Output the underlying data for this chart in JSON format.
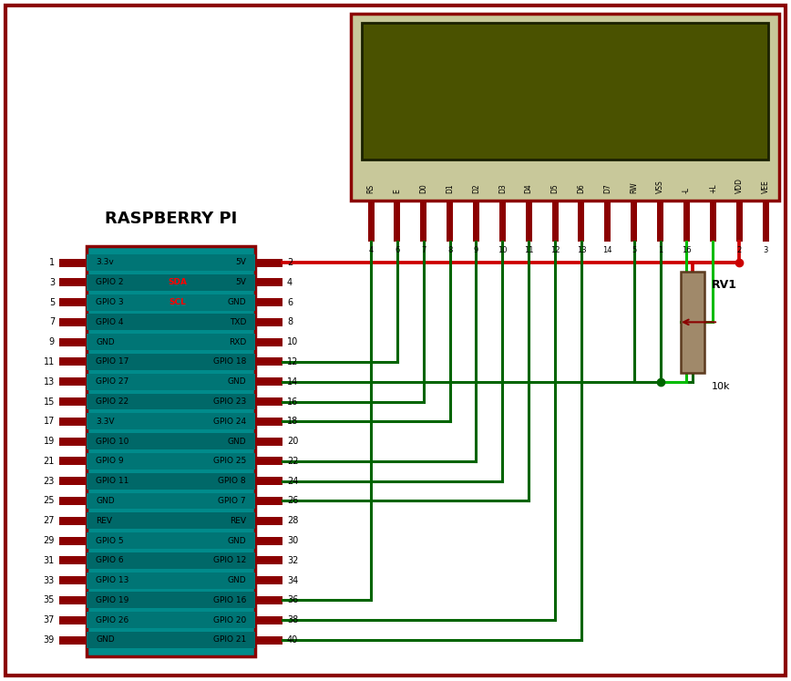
{
  "bg_color": "#ffffff",
  "border_color": "#8B0000",
  "rpi_left_labels": [
    "3.3v",
    "GPIO 2",
    "GPIO 3",
    "GPIO 4",
    "GND",
    "GPIO 17",
    "GPIO 27",
    "GPIO 22",
    "3.3V",
    "GPIO 10",
    "GPIO 9",
    "GPIO 11",
    "GND",
    "REV",
    "GPIO 5",
    "GPIO 6",
    "GPIO 13",
    "GPIO 19",
    "GPIO 26",
    "GND"
  ],
  "rpi_right_labels": [
    "5V",
    "5V",
    "GND",
    "TXD",
    "RXD",
    "GPIO 18",
    "GND",
    "GPIO 23",
    "GPIO 24",
    "GND",
    "GPIO 25",
    "GPIO 8",
    "GPIO 7",
    "REV",
    "GND",
    "GPIO 12",
    "GND",
    "GPIO 16",
    "GPIO 20",
    "GPIO 21"
  ],
  "rpi_left_nums": [
    "1",
    "3",
    "5",
    "7",
    "9",
    "11",
    "13",
    "15",
    "17",
    "19",
    "21",
    "23",
    "25",
    "27",
    "29",
    "31",
    "33",
    "35",
    "37",
    "39"
  ],
  "rpi_right_nums": [
    "2",
    "4",
    "6",
    "8",
    "10",
    "12",
    "14",
    "16",
    "18",
    "20",
    "22",
    "24",
    "26",
    "28",
    "30",
    "32",
    "34",
    "36",
    "38",
    "40"
  ],
  "lcd_pin_labels": [
    "RS",
    "E",
    "D0",
    "D1",
    "D2",
    "D3",
    "D4",
    "D5",
    "D6",
    "D7",
    "RW",
    "VSS",
    "-L",
    "+L",
    "VDD",
    "VEE"
  ],
  "lcd_pin_nums": [
    "4",
    "6",
    "7",
    "8",
    "9",
    "10",
    "11",
    "12",
    "13",
    "14",
    "5",
    "1",
    "16",
    "",
    "2",
    "3"
  ],
  "rpi_chip_color": "#008B8B",
  "rpi_border_color": "#8B0000",
  "lcd_body_color": "#c8c89a",
  "lcd_screen_color": "#4a5200",
  "wire_dg": "#006400",
  "wire_rd": "#cc0000",
  "wire_lg": "#00bb00",
  "rv1_body_color": "#a0896a",
  "rv1_border_color": "#5c3a1e"
}
